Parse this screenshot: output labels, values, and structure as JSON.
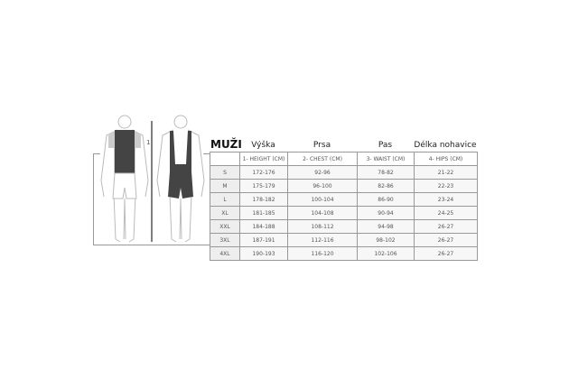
{
  "title": "MUŽI",
  "column_titles": [
    "Výška",
    "Prsa",
    "Pas",
    "Délka nohavice"
  ],
  "table": {
    "headers": [
      "",
      "1- HEIGHT (CM)",
      "2- CHEST (CM)",
      "3- WAIST (CM)",
      "4- HIPS (CM)"
    ],
    "rows": [
      [
        "S",
        "172-176",
        "92-96",
        "78-82",
        "21-22"
      ],
      [
        "M",
        "175-179",
        "96-100",
        "82-86",
        "22-23"
      ],
      [
        "L",
        "178-182",
        "100-104",
        "86-90",
        "23-24"
      ],
      [
        "XL",
        "181-185",
        "104-108",
        "90-94",
        "24-25"
      ],
      [
        "XXL",
        "184-188",
        "108-112",
        "94-98",
        "26-27"
      ],
      [
        "3XL",
        "187-191",
        "112-116",
        "98-102",
        "26-27"
      ],
      [
        "4XL",
        "190-193",
        "116-120",
        "102-106",
        "26-27"
      ]
    ]
  },
  "figure_label": "1"
}
